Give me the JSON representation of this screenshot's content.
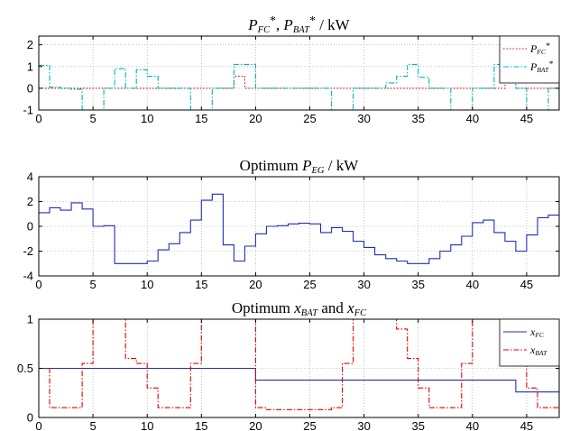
{
  "chart_data": [
    {
      "type": "line",
      "step": true,
      "title_parts": [
        {
          "t": "P",
          "style": "it"
        },
        {
          "t": "FC",
          "style": "sub"
        },
        {
          "t": "*",
          "style": "sup"
        },
        {
          "t": ", ",
          "style": "plain"
        },
        {
          "t": "P",
          "style": "it"
        },
        {
          "t": "BAT",
          "style": "sub"
        },
        {
          "t": "*",
          "style": "sup"
        },
        {
          "t": " / kW",
          "style": "plain"
        }
      ],
      "xlim": [
        0,
        48
      ],
      "ylim": [
        -1,
        2.4
      ],
      "xticks": [
        "0",
        "5",
        "10",
        "15",
        "20",
        "25",
        "30",
        "35",
        "40",
        "45"
      ],
      "yticks": [
        "-1",
        "0",
        "1",
        "2"
      ],
      "grid": true,
      "legend_position": "top-right",
      "series": [
        {
          "name_parts": [
            {
              "t": "P",
              "style": "it"
            },
            {
              "t": "FC",
              "style": "sub"
            },
            {
              "t": "*",
              "style": "sup"
            }
          ],
          "color": "#e00000",
          "dash": "1.5,2",
          "values": [
            0,
            0,
            0,
            0,
            0,
            0,
            0,
            0,
            0,
            0,
            0,
            0,
            0,
            0,
            0,
            0,
            0,
            0,
            0.55,
            0,
            0,
            0,
            0,
            0,
            0,
            0,
            0,
            0,
            0,
            0,
            0,
            0,
            0,
            0,
            0,
            0,
            0,
            0,
            0,
            0,
            0,
            0,
            0,
            0.55,
            0,
            0,
            0,
            0
          ]
        },
        {
          "name_parts": [
            {
              "t": "P",
              "style": "it"
            },
            {
              "t": "BAT",
              "style": "sub"
            },
            {
              "t": "*",
              "style": "sup"
            }
          ],
          "color": "#00b4b4",
          "dash": "6,2,1.5,2",
          "values": [
            1.05,
            0.05,
            0,
            -0.05,
            -1,
            -1,
            0,
            0.9,
            0,
            0.85,
            0.55,
            0,
            0,
            0,
            -1,
            -1,
            0,
            0,
            1.1,
            1.1,
            0,
            0,
            0,
            0,
            0,
            0,
            0,
            -1,
            -1,
            0,
            0,
            0,
            0.25,
            0.55,
            1.1,
            0.5,
            0,
            0,
            -1,
            -1,
            0,
            0,
            1.1,
            0.5,
            0,
            -1,
            -1,
            0
          ]
        }
      ]
    },
    {
      "type": "line",
      "step": true,
      "title_parts": [
        {
          "t": "Optimum ",
          "style": "plain"
        },
        {
          "t": "P",
          "style": "it"
        },
        {
          "t": "EG",
          "style": "sub"
        },
        {
          "t": " / kW",
          "style": "plain"
        }
      ],
      "xlim": [
        0,
        48
      ],
      "ylim": [
        -4,
        4
      ],
      "xticks": [
        "0",
        "5",
        "10",
        "15",
        "20",
        "25",
        "30",
        "35",
        "40",
        "45"
      ],
      "yticks": [
        "-4",
        "-2",
        "0",
        "2",
        "4"
      ],
      "grid": true,
      "series": [
        {
          "color": "#1f2fb0",
          "values": [
            1.1,
            1.5,
            1.3,
            1.9,
            1.4,
            0.0,
            0.05,
            -3.0,
            -3.0,
            -3.0,
            -2.8,
            -1.9,
            -1.4,
            -0.5,
            0.5,
            2.1,
            2.6,
            -1.5,
            -2.8,
            -1.6,
            -0.6,
            0.0,
            0.05,
            0.2,
            0.25,
            0.2,
            -0.5,
            -0.1,
            -0.4,
            -1.2,
            -1.7,
            -2.3,
            -2.6,
            -2.8,
            -3.0,
            -3.0,
            -2.6,
            -2.0,
            -1.5,
            -0.8,
            0.3,
            0.5,
            -0.5,
            -1.2,
            -2.0,
            -0.7,
            0.7,
            0.9
          ]
        }
      ]
    },
    {
      "type": "line",
      "step": true,
      "title_parts": [
        {
          "t": "Optimum ",
          "style": "plain"
        },
        {
          "t": "x",
          "style": "it"
        },
        {
          "t": "BAT",
          "style": "sub"
        },
        {
          "t": " and ",
          "style": "plain"
        },
        {
          "t": "x",
          "style": "it"
        },
        {
          "t": "FC",
          "style": "sub"
        }
      ],
      "xlim": [
        0,
        48
      ],
      "ylim": [
        0,
        1
      ],
      "xticks": [
        "0",
        "5",
        "10",
        "15",
        "20",
        "25",
        "30",
        "35",
        "40",
        "45"
      ],
      "yticks": [
        "0",
        "0.5",
        "1"
      ],
      "grid": true,
      "legend_position": "top-right",
      "series": [
        {
          "name_parts": [
            {
              "t": "x",
              "style": "it"
            },
            {
              "t": "FC",
              "style": "sub"
            }
          ],
          "color": "#1f2fb0",
          "dash": "",
          "values": [
            0.5,
            0.5,
            0.5,
            0.5,
            0.5,
            0.5,
            0.5,
            0.5,
            0.5,
            0.5,
            0.5,
            0.5,
            0.5,
            0.5,
            0.5,
            0.5,
            0.5,
            0.5,
            0.5,
            0.5,
            0.38,
            0.38,
            0.38,
            0.38,
            0.38,
            0.38,
            0.38,
            0.38,
            0.38,
            0.38,
            0.38,
            0.38,
            0.38,
            0.38,
            0.38,
            0.38,
            0.38,
            0.38,
            0.38,
            0.38,
            0.38,
            0.38,
            0.38,
            0.38,
            0.26,
            0.26,
            0.26,
            0.26
          ]
        },
        {
          "name_parts": [
            {
              "t": "x",
              "style": "it"
            },
            {
              "t": "BAT",
              "style": "sub"
            }
          ],
          "color": "#e00000",
          "dash": "6,2,1.5,2",
          "values": [
            0.5,
            0.1,
            0.1,
            0.1,
            0.55,
            1.0,
            1.0,
            1.0,
            0.6,
            0.55,
            0.3,
            0.1,
            0.1,
            0.1,
            0.55,
            1.0,
            1.0,
            1.0,
            1.0,
            1.0,
            0.1,
            0.08,
            0.08,
            0.08,
            0.08,
            0.08,
            0.08,
            0.1,
            0.55,
            1.0,
            1.0,
            1.0,
            1.0,
            0.9,
            0.6,
            0.3,
            0.1,
            0.1,
            0.1,
            0.55,
            1.0,
            1.0,
            1.0,
            1.0,
            0.55,
            0.3,
            0.1,
            0.1
          ]
        }
      ]
    }
  ]
}
